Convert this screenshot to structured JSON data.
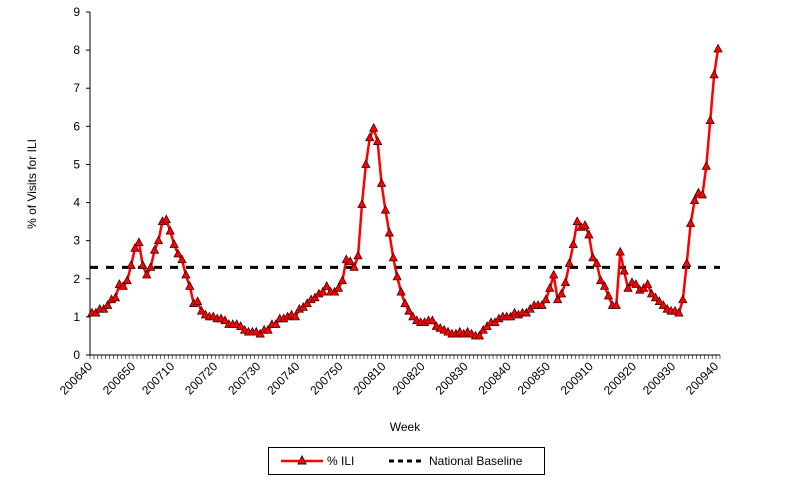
{
  "chart_data": {
    "type": "line",
    "title": "",
    "xlabel": "Week",
    "ylabel": "% of Visits for ILI",
    "ylim": [
      0,
      9
    ],
    "yticks": [
      0,
      1,
      2,
      3,
      4,
      5,
      6,
      7,
      8,
      9
    ],
    "x_tick_labels": [
      "200640",
      "200650",
      "200710",
      "200720",
      "200730",
      "200740",
      "200750",
      "200810",
      "200820",
      "200830",
      "200840",
      "200850",
      "200910",
      "200920",
      "200930",
      "200940"
    ],
    "legend_position": "bottom-center",
    "series": [
      {
        "name": "% ILI",
        "color": "#ff0000",
        "marker": "triangle",
        "values": [
          1.1,
          1.1,
          1.2,
          1.2,
          1.3,
          1.45,
          1.5,
          1.85,
          1.8,
          1.95,
          2.35,
          2.8,
          2.95,
          2.35,
          2.1,
          2.3,
          2.75,
          3.0,
          3.5,
          3.55,
          3.25,
          2.9,
          2.65,
          2.5,
          2.1,
          1.8,
          1.35,
          1.4,
          1.15,
          1.05,
          1.0,
          1.0,
          0.95,
          0.95,
          0.9,
          0.8,
          0.8,
          0.8,
          0.75,
          0.65,
          0.6,
          0.6,
          0.6,
          0.55,
          0.65,
          0.65,
          0.8,
          0.8,
          0.95,
          0.95,
          1.0,
          1.05,
          1.0,
          1.2,
          1.25,
          1.35,
          1.45,
          1.5,
          1.6,
          1.65,
          1.8,
          1.65,
          1.65,
          1.75,
          1.95,
          2.5,
          2.45,
          2.3,
          2.6,
          3.95,
          5.0,
          5.7,
          5.95,
          5.6,
          4.5,
          3.8,
          3.2,
          2.55,
          2.05,
          1.65,
          1.35,
          1.15,
          1.0,
          0.9,
          0.85,
          0.85,
          0.9,
          0.9,
          0.75,
          0.7,
          0.65,
          0.6,
          0.55,
          0.55,
          0.6,
          0.55,
          0.6,
          0.55,
          0.5,
          0.5,
          0.65,
          0.75,
          0.85,
          0.85,
          0.95,
          1.0,
          1.0,
          1.0,
          1.1,
          1.05,
          1.1,
          1.1,
          1.2,
          1.3,
          1.3,
          1.3,
          1.45,
          1.75,
          2.1,
          1.45,
          1.6,
          1.9,
          2.4,
          2.9,
          3.5,
          3.35,
          3.4,
          3.15,
          2.55,
          2.4,
          1.95,
          1.8,
          1.55,
          1.3,
          1.3,
          2.7,
          2.2,
          1.75,
          1.9,
          1.85,
          1.7,
          1.75,
          1.85,
          1.6,
          1.5,
          1.4,
          1.3,
          1.2,
          1.15,
          1.15,
          1.1,
          1.45,
          2.4,
          3.45,
          4.05,
          4.25,
          4.2,
          4.95,
          6.15,
          7.35,
          8.03
        ]
      },
      {
        "name": "National Baseline",
        "color": "#000000",
        "style": "dashed",
        "value": 2.3
      }
    ]
  }
}
